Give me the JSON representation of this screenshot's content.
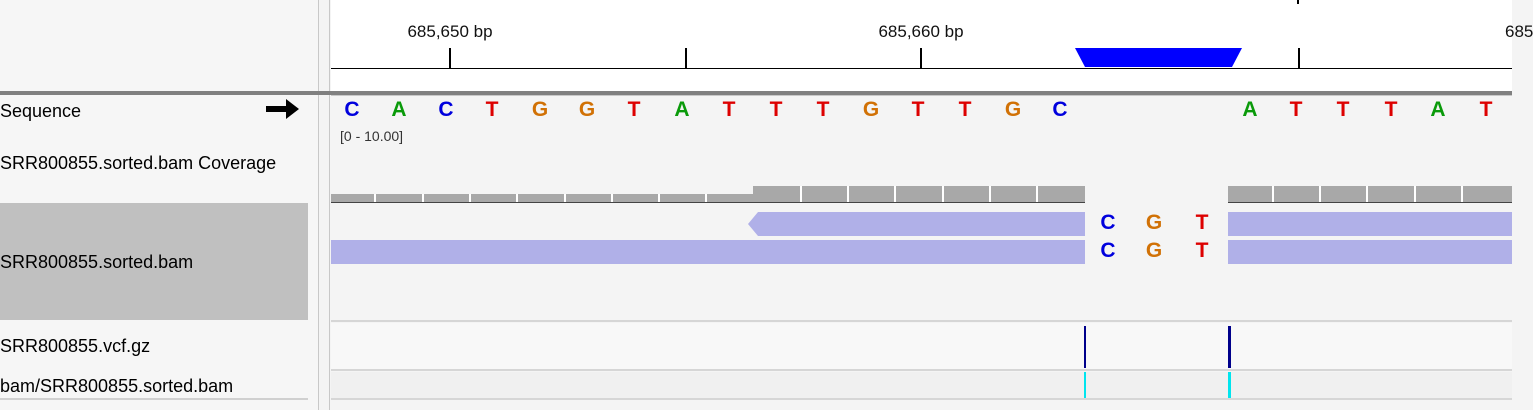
{
  "ruler": {
    "labels": [
      "685,650 bp",
      "685,660 bp",
      "685"
    ]
  },
  "sequence_track": {
    "label": "Sequence",
    "bases_left": [
      "C",
      "A",
      "C",
      "T",
      "G",
      "G",
      "T",
      "A",
      "T",
      "T",
      "T",
      "G",
      "T",
      "T",
      "G",
      "C"
    ],
    "bases_right": [
      "A",
      "T",
      "T",
      "T",
      "A",
      "T"
    ]
  },
  "coverage_track": {
    "label": "SRR800855.sorted.bam Coverage",
    "range": "[0 - 10.00]"
  },
  "bam_track": {
    "label": "SRR800855.sorted.bam",
    "insert_read1": [
      "C",
      "G",
      "T"
    ],
    "insert_read2": [
      "C",
      "G",
      "T"
    ]
  },
  "vcf_track": {
    "label": "SRR800855.vcf.gz"
  },
  "bam2_track": {
    "label": "bam/SRR800855.sorted.bam"
  },
  "colors": {
    "A": "#0a9a0a",
    "C": "#0000dd",
    "G": "#d17105",
    "T": "#dd0000",
    "read": "#b0b0e8",
    "coverage": "#a8a8a8",
    "feature": "#0000ff",
    "variant": "#00008b",
    "variant2": "#00e5ee"
  }
}
